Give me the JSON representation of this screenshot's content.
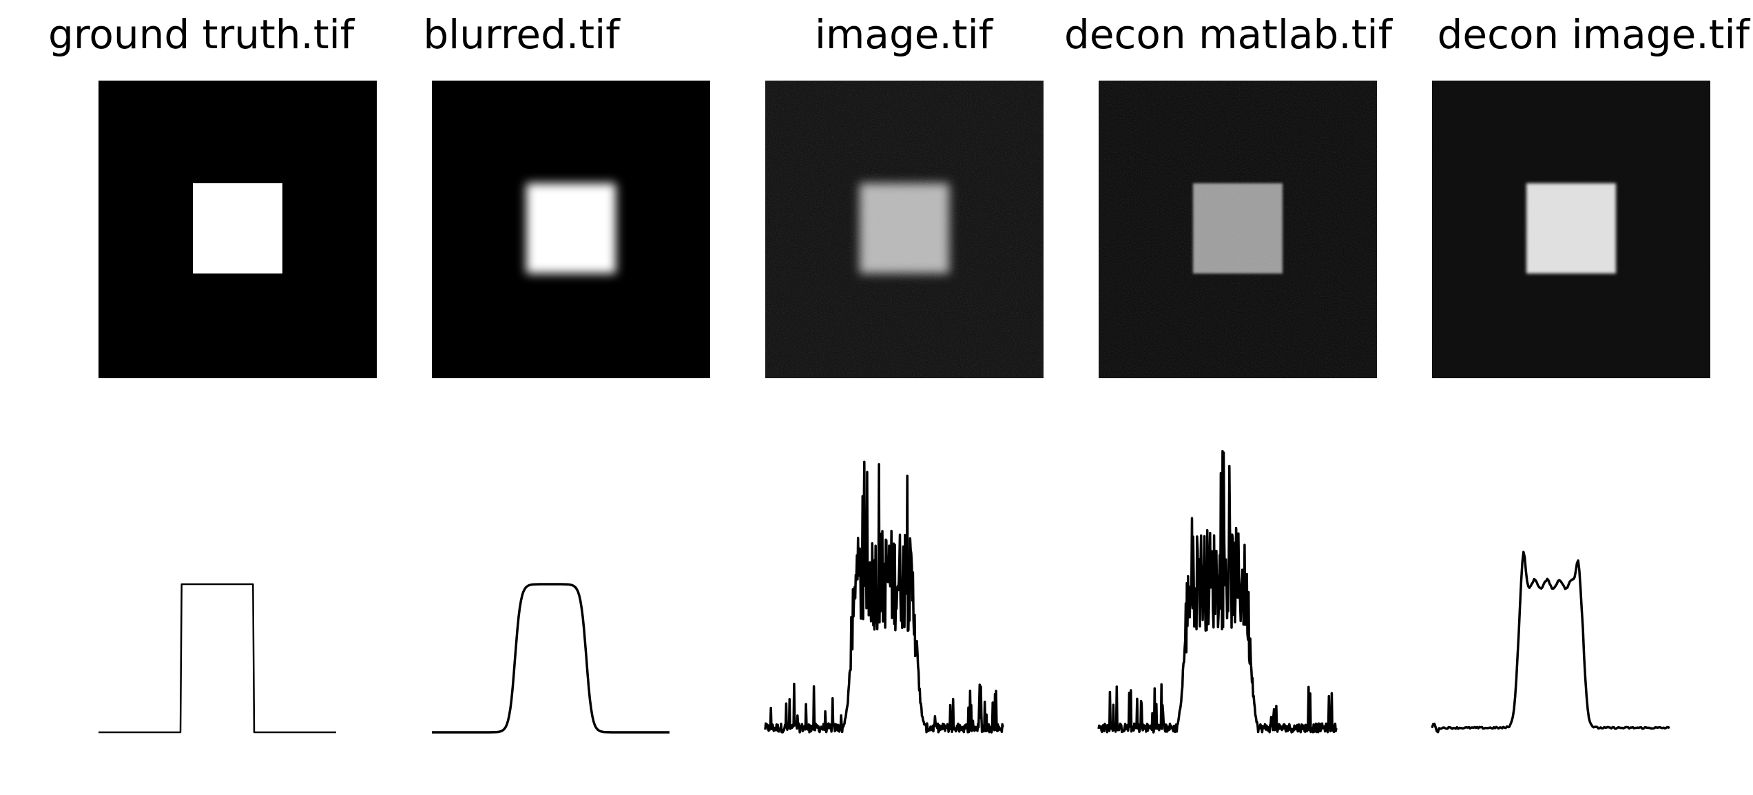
{
  "colors": {
    "background": "#ffffff",
    "image_background": "#000000",
    "line": "#000000"
  },
  "chart_data": [
    {
      "type": "image",
      "title": "ground truth.tif",
      "square_brightness": 1.0,
      "background_level": 0.0,
      "noise": 0.0,
      "edge_blur": 0.0
    },
    {
      "type": "image",
      "title": "blurred.tif",
      "square_brightness": 1.0,
      "background_level": 0.0,
      "noise": 0.0,
      "edge_blur": 0.6
    },
    {
      "type": "image",
      "title": "image.tif",
      "square_brightness": 0.72,
      "background_level": 0.08,
      "noise": 0.2,
      "edge_blur": 0.6
    },
    {
      "type": "image",
      "title": "decon matlab.tif",
      "square_brightness": 0.62,
      "background_level": 0.06,
      "noise": 0.18,
      "edge_blur": 0.15
    },
    {
      "type": "image",
      "title": "decon image.tif",
      "square_brightness": 0.88,
      "background_level": 0.06,
      "noise": 0.03,
      "edge_blur": 0.2
    },
    {
      "type": "line",
      "profile": "step",
      "plateau": 1.0,
      "baseline": 0.0,
      "rise_start": 0.35,
      "fall_end": 0.65
    },
    {
      "type": "line",
      "profile": "smooth-step",
      "plateau": 1.0,
      "baseline": 0.0,
      "rise_start": 0.3,
      "fall_end": 0.7
    },
    {
      "type": "line",
      "profile": "noisy",
      "plateau": 1.0,
      "baseline": 0.0,
      "rise_start": 0.32,
      "fall_end": 0.68,
      "peak": 1.9,
      "noise_amplitude": 0.5
    },
    {
      "type": "line",
      "profile": "noisy",
      "plateau": 1.0,
      "baseline": 0.0,
      "rise_start": 0.32,
      "fall_end": 0.68,
      "peak": 1.95,
      "noise_amplitude": 0.5
    },
    {
      "type": "line",
      "profile": "ringing",
      "plateau": 1.0,
      "baseline": 0.03,
      "rise_start": 0.32,
      "fall_end": 0.68,
      "peak": 1.23
    }
  ]
}
